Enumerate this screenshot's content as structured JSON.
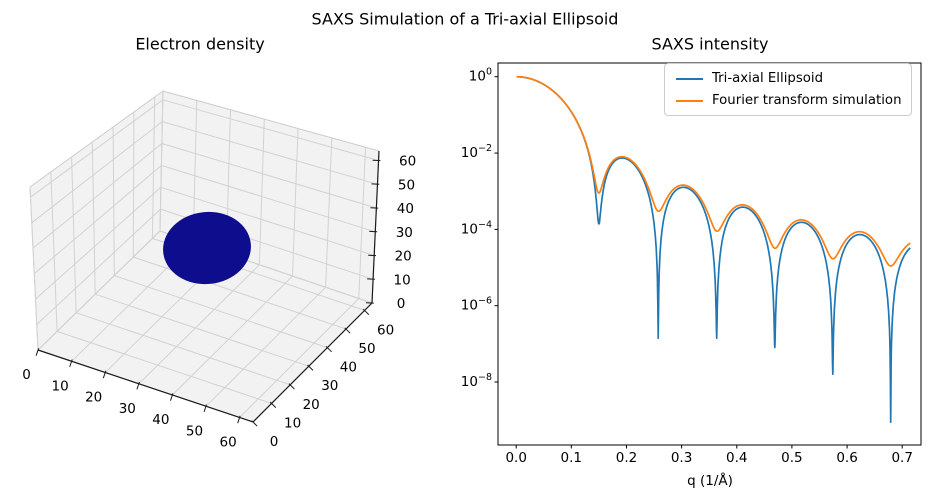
{
  "figure": {
    "suptitle": "SAXS Simulation of a Tri-axial Ellipsoid",
    "background_color": "#ffffff"
  },
  "electron_density_plot": {
    "title": "Electron density",
    "xticks": [
      "0",
      "10",
      "20",
      "30",
      "40",
      "50",
      "60"
    ],
    "yticks": [
      "0",
      "10",
      "20",
      "30",
      "40",
      "50",
      "60"
    ],
    "zticks": [
      "0",
      "10",
      "20",
      "30",
      "40",
      "50",
      "60"
    ]
  },
  "saxs_plot": {
    "title": "SAXS intensity",
    "xlabel": "q (1/Å)",
    "xticks": [
      "0.0",
      "0.1",
      "0.2",
      "0.3",
      "0.4",
      "0.5",
      "0.6",
      "0.7"
    ],
    "ytick_exponents": [
      0,
      -2,
      -4,
      -6,
      -8
    ],
    "legend": {
      "entries": [
        {
          "label": "Tri-axial Ellipsoid",
          "color": "#1f77b4"
        },
        {
          "label": "Fourier transform simulation",
          "color": "#ff7f0e"
        }
      ]
    }
  },
  "chart_data": [
    {
      "type": "scatter",
      "projection": "3d",
      "title": "Electron density",
      "axis_range": [
        0,
        64
      ],
      "xticks": [
        0,
        10,
        20,
        30,
        40,
        50,
        60
      ],
      "yticks": [
        0,
        10,
        20,
        30,
        40,
        50,
        60
      ],
      "zticks": [
        0,
        10,
        20,
        30,
        40,
        50,
        60
      ],
      "pane_color": "#f2f2f2",
      "pane_edge_color": "#cccccc",
      "grid_color": "#d2d2d2",
      "ellipsoid": {
        "center": [
          32,
          32,
          32
        ],
        "color": "#0d0d8d"
      }
    },
    {
      "type": "line",
      "title": "SAXS intensity",
      "xlabel": "q (1/Å)",
      "yscale": "log",
      "grid": false,
      "legend_position": "upper right",
      "xlim": [
        -0.033,
        0.734
      ],
      "ylim_log10": [
        -9.65,
        0.36
      ],
      "series": [
        {
          "name": "Tri-axial Ellipsoid",
          "color": "#1f77b4",
          "model": "sphere_form_factor",
          "sphere_radius_A": 30,
          "q_max": 0.715,
          "minima": {
            "q": [
              0.1498,
              0.2575,
              0.3635,
              0.4689,
              0.574,
              0.679
            ],
            "I": [
              0.00014,
              1.4e-07,
              1.4e-07,
              8e-08,
              1.6e-08,
              8e-10
            ]
          },
          "maxima": {
            "q": [
              0.0,
              0.192,
              0.305,
              0.417,
              0.522,
              0.629
            ],
            "I": [
              1.0,
              0.0072,
              0.0019,
              0.00047,
              0.00019,
              8e-05
            ]
          }
        },
        {
          "name": "Fourier transform simulation",
          "color": "#ff7f0e",
          "model": "sphere_form_factor",
          "sphere_radius_A": 30,
          "q_max": 0.715,
          "minima": {
            "q": [
              0.1498,
              0.2575,
              0.3635,
              0.4689,
              0.574,
              0.679
            ],
            "I": [
              0.0009,
              0.0003,
              9e-05,
              3.2e-05,
              1.7e-05,
              1.1e-05
            ]
          },
          "maxima": {
            "q": [
              0.0,
              0.192,
              0.305,
              0.417,
              0.522,
              0.629
            ],
            "I": [
              1.0,
              0.0078,
              0.0022,
              0.00054,
              0.00022,
              9.5e-05
            ]
          }
        }
      ]
    }
  ]
}
